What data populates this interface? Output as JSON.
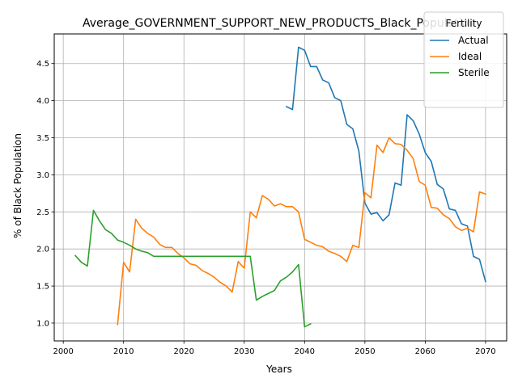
{
  "chart_data": {
    "type": "line",
    "title": "Average_GOVERNMENT_SUPPORT_NEW_PRODUCTS_Black_Population",
    "xlabel": "Years",
    "ylabel": "% of Black Population",
    "xlim": [
      1998.5,
      2073.5
    ],
    "ylim": [
      0.76,
      4.9
    ],
    "xticks": [
      2000,
      2010,
      2020,
      2030,
      2040,
      2050,
      2060,
      2070
    ],
    "yticks": [
      1.0,
      1.5,
      2.0,
      2.5,
      3.0,
      3.5,
      4.0,
      4.5
    ],
    "ytick_labels": [
      "1.0",
      "1.5",
      "2.0",
      "2.5",
      "3.0",
      "3.5",
      "4.0",
      "4.5"
    ],
    "grid": true,
    "legend": {
      "title": "Fertility",
      "placement": "top-right"
    },
    "series": [
      {
        "name": "Actual",
        "color": "#1f77b4",
        "x": [
          2037,
          2038,
          2039,
          2040,
          2041,
          2042,
          2043,
          2044,
          2045,
          2046,
          2047,
          2048,
          2049,
          2050,
          2051,
          2052,
          2053,
          2054,
          2055,
          2056,
          2057,
          2058,
          2059,
          2060,
          2061,
          2062,
          2063,
          2064,
          2065,
          2066,
          2067,
          2068,
          2069,
          2070
        ],
        "y": [
          3.92,
          3.88,
          4.72,
          4.68,
          4.46,
          4.46,
          4.28,
          4.24,
          4.04,
          4.0,
          3.68,
          3.62,
          3.32,
          2.62,
          2.47,
          2.49,
          2.38,
          2.46,
          2.89,
          2.86,
          3.81,
          3.73,
          3.55,
          3.3,
          3.18,
          2.87,
          2.81,
          2.54,
          2.52,
          2.34,
          2.31,
          1.9,
          1.86,
          1.56
        ]
      },
      {
        "name": "Ideal",
        "color": "#ff7f0e",
        "x": [
          2009,
          2010,
          2011,
          2012,
          2013,
          2014,
          2015,
          2016,
          2017,
          2018,
          2019,
          2020,
          2021,
          2022,
          2023,
          2024,
          2025,
          2026,
          2027,
          2028,
          2029,
          2030,
          2031,
          2032,
          2033,
          2034,
          2035,
          2036,
          2037,
          2038,
          2039,
          2040,
          2041,
          2042,
          2043,
          2044,
          2045,
          2046,
          2047,
          2048,
          2049,
          2050,
          2051,
          2052,
          2053,
          2054,
          2055,
          2056,
          2057,
          2058,
          2059,
          2060,
          2061,
          2062,
          2063,
          2064,
          2065,
          2066,
          2067,
          2068,
          2069,
          2070
        ],
        "y": [
          0.98,
          1.82,
          1.69,
          2.4,
          2.28,
          2.21,
          2.16,
          2.06,
          2.02,
          2.02,
          1.94,
          1.88,
          1.8,
          1.78,
          1.71,
          1.67,
          1.62,
          1.55,
          1.5,
          1.42,
          1.83,
          1.74,
          2.5,
          2.42,
          2.72,
          2.67,
          2.58,
          2.61,
          2.57,
          2.57,
          2.5,
          2.13,
          2.09,
          2.05,
          2.03,
          1.97,
          1.94,
          1.9,
          1.83,
          2.05,
          2.02,
          2.76,
          2.69,
          3.4,
          3.3,
          3.5,
          3.42,
          3.41,
          3.33,
          3.22,
          2.91,
          2.86,
          2.56,
          2.55,
          2.46,
          2.41,
          2.3,
          2.25,
          2.28,
          2.23,
          2.77,
          2.74
        ]
      },
      {
        "name": "Sterile",
        "color": "#2ca02c",
        "x": [
          2002,
          2003,
          2004,
          2005,
          2006,
          2007,
          2008,
          2009,
          2010,
          2011,
          2012,
          2013,
          2014,
          2015,
          2016,
          2017,
          2018,
          2019,
          2020,
          2021,
          2022,
          2023,
          2024,
          2025,
          2026,
          2027,
          2028,
          2029,
          2030,
          2031,
          2032,
          2033,
          2034,
          2035,
          2036,
          2037,
          2038,
          2039,
          2040,
          2041
        ],
        "y": [
          1.91,
          1.82,
          1.77,
          2.52,
          2.38,
          2.26,
          2.21,
          2.12,
          2.09,
          2.05,
          2.0,
          1.97,
          1.95,
          1.9,
          1.9,
          1.9,
          1.9,
          1.9,
          1.9,
          1.9,
          1.9,
          1.9,
          1.9,
          1.9,
          1.9,
          1.9,
          1.9,
          1.9,
          1.9,
          1.9,
          1.31,
          1.36,
          1.4,
          1.44,
          1.57,
          1.62,
          1.69,
          1.79,
          0.95,
          0.99
        ]
      }
    ]
  }
}
